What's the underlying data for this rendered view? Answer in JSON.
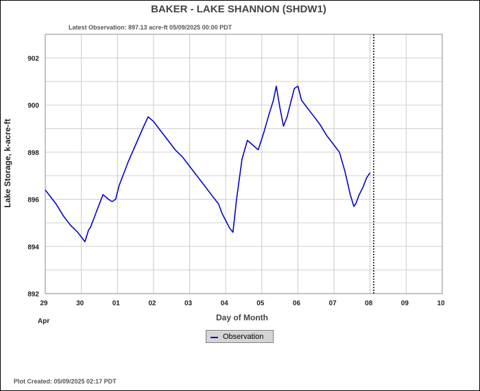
{
  "chart_data": {
    "type": "line",
    "title": "BAKER - LAKE SHANNON  (SHDW1)",
    "subtitle": "Latest Observation: 897.13 acre-ft 05/09/2025 00:00 PDT",
    "xlabel": "Day of Month",
    "ylabel": "Lake Storage, k-acre-ft",
    "x_ticks": [
      "29",
      "30",
      "01",
      "02",
      "03",
      "04",
      "05",
      "06",
      "07",
      "08",
      "09",
      "10"
    ],
    "x_sublabel": "Apr",
    "xlim": [
      0,
      11
    ],
    "ylim": [
      892,
      903
    ],
    "y_ticks": [
      892,
      894,
      896,
      898,
      900,
      902
    ],
    "grid": true,
    "series": [
      {
        "name": "Observation",
        "color": "#0000cc",
        "x": [
          0.0,
          0.15,
          0.3,
          0.5,
          0.7,
          0.9,
          1.0,
          1.1,
          1.2,
          1.25,
          1.35,
          1.45,
          1.6,
          1.75,
          1.85,
          1.95,
          2.05,
          2.15,
          2.3,
          2.5,
          2.7,
          2.85,
          3.0,
          3.1,
          3.2,
          3.4,
          3.6,
          3.8,
          4.0,
          4.2,
          4.4,
          4.6,
          4.8,
          4.9,
          5.0,
          5.1,
          5.2,
          5.3,
          5.45,
          5.6,
          5.75,
          5.9,
          6.05,
          6.2,
          6.32,
          6.4,
          6.5,
          6.6,
          6.7,
          6.8,
          6.9,
          7.0,
          7.1,
          7.2,
          7.4,
          7.6,
          7.8,
          8.0,
          8.15,
          8.3,
          8.45,
          8.55,
          8.6,
          8.7,
          8.8,
          8.9,
          9.0
        ],
        "y": [
          896.4,
          896.1,
          895.8,
          895.3,
          894.9,
          894.6,
          894.4,
          894.2,
          894.7,
          894.8,
          895.2,
          895.6,
          896.2,
          896.0,
          895.9,
          896.0,
          896.6,
          897.0,
          897.6,
          898.3,
          899.0,
          899.5,
          899.3,
          899.1,
          898.9,
          898.5,
          898.1,
          897.8,
          897.4,
          897.0,
          896.6,
          896.2,
          895.8,
          895.4,
          895.1,
          894.8,
          894.6,
          896.0,
          897.7,
          898.5,
          898.3,
          898.1,
          898.8,
          899.6,
          900.2,
          900.8,
          899.9,
          899.1,
          899.5,
          900.1,
          900.7,
          900.8,
          900.2,
          900.0,
          899.6,
          899.2,
          898.7,
          898.3,
          898.0,
          897.2,
          896.2,
          895.7,
          895.8,
          896.2,
          896.5,
          896.9,
          897.13
        ]
      }
    ],
    "latest_observation_x": 9.1,
    "legend_position": "bottom-center"
  },
  "footer": {
    "plot_created": "Plot Created: 05/09/2025 02:17 PDT"
  }
}
